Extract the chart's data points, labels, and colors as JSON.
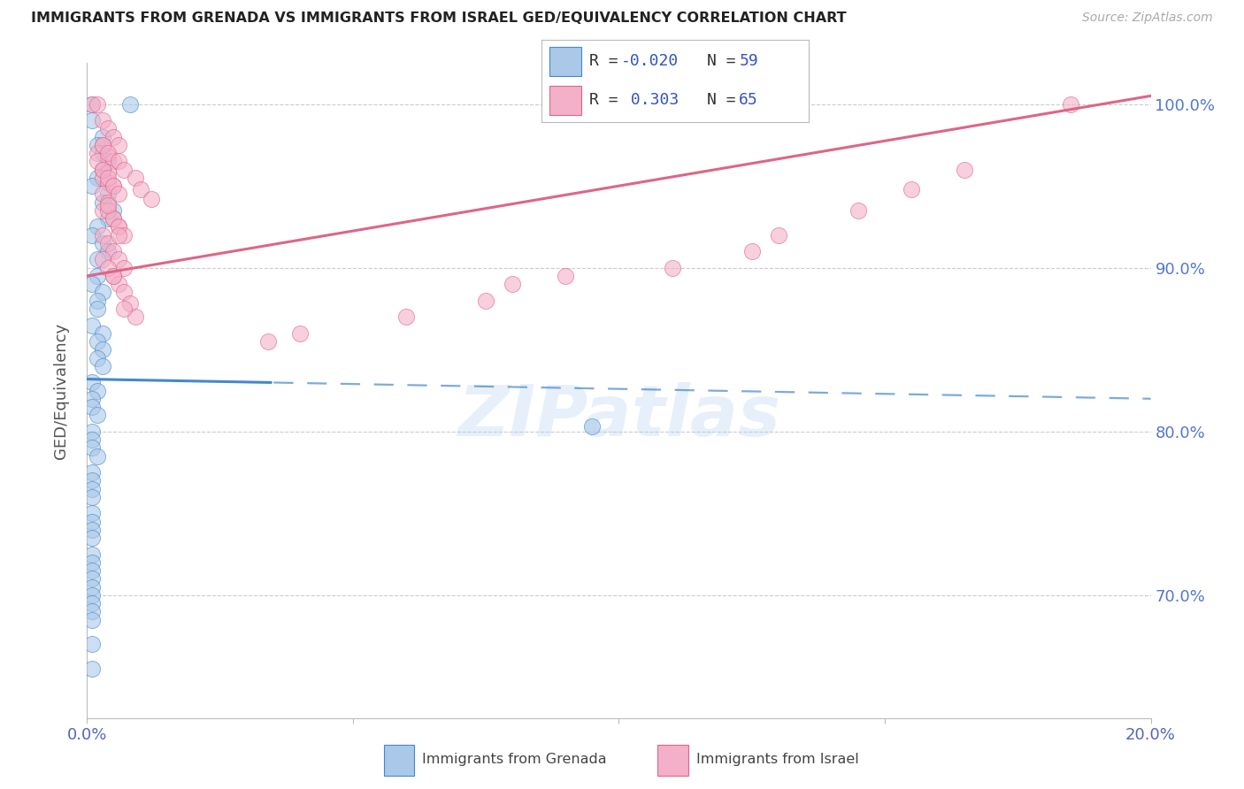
{
  "title": "IMMIGRANTS FROM GRENADA VS IMMIGRANTS FROM ISRAEL GED/EQUIVALENCY CORRELATION CHART",
  "source": "Source: ZipAtlas.com",
  "ylabel": "GED/Equivalency",
  "label1": "Immigrants from Grenada",
  "label2": "Immigrants from Israel",
  "color1": "#aac8e8",
  "color2": "#f4b0c8",
  "edge_color1": "#4488cc",
  "edge_color2": "#dd6688",
  "watermark": "ZIPatlas",
  "xmin": 0.0,
  "xmax": 0.2,
  "ymin": 0.625,
  "ymax": 1.025,
  "R1": -0.02,
  "N1": 59,
  "R2": 0.303,
  "N2": 65,
  "grenada_x": [
    0.001,
    0.008,
    0.001,
    0.003,
    0.002,
    0.003,
    0.004,
    0.003,
    0.002,
    0.001,
    0.004,
    0.003,
    0.005,
    0.004,
    0.002,
    0.001,
    0.003,
    0.004,
    0.002,
    0.002,
    0.001,
    0.003,
    0.002,
    0.002,
    0.001,
    0.003,
    0.002,
    0.003,
    0.002,
    0.003,
    0.001,
    0.002,
    0.001,
    0.001,
    0.002,
    0.001,
    0.001,
    0.001,
    0.002,
    0.001,
    0.001,
    0.001,
    0.001,
    0.001,
    0.001,
    0.001,
    0.001,
    0.001,
    0.001,
    0.001,
    0.001,
    0.001,
    0.001,
    0.001,
    0.001,
    0.001,
    0.001,
    0.001,
    0.095
  ],
  "grenada_y": [
    1.0,
    1.0,
    0.99,
    0.98,
    0.975,
    0.97,
    0.965,
    0.96,
    0.955,
    0.95,
    0.945,
    0.94,
    0.935,
    0.93,
    0.925,
    0.92,
    0.915,
    0.91,
    0.905,
    0.895,
    0.89,
    0.885,
    0.88,
    0.875,
    0.865,
    0.86,
    0.855,
    0.85,
    0.845,
    0.84,
    0.83,
    0.825,
    0.82,
    0.815,
    0.81,
    0.8,
    0.795,
    0.79,
    0.785,
    0.775,
    0.77,
    0.765,
    0.76,
    0.75,
    0.745,
    0.74,
    0.735,
    0.725,
    0.72,
    0.715,
    0.71,
    0.705,
    0.7,
    0.695,
    0.69,
    0.685,
    0.67,
    0.655,
    0.803
  ],
  "israel_x": [
    0.001,
    0.002,
    0.003,
    0.004,
    0.005,
    0.006,
    0.003,
    0.002,
    0.004,
    0.005,
    0.003,
    0.004,
    0.003,
    0.004,
    0.005,
    0.003,
    0.004,
    0.003,
    0.005,
    0.006,
    0.003,
    0.004,
    0.005,
    0.006,
    0.007,
    0.005,
    0.006,
    0.007,
    0.008,
    0.009,
    0.002,
    0.003,
    0.004,
    0.005,
    0.006,
    0.004,
    0.005,
    0.006,
    0.007,
    0.003,
    0.004,
    0.005,
    0.003,
    0.004,
    0.006,
    0.007,
    0.009,
    0.01,
    0.012,
    0.004,
    0.006,
    0.007,
    0.034,
    0.04,
    0.06,
    0.075,
    0.08,
    0.09,
    0.11,
    0.125,
    0.13,
    0.145,
    0.155,
    0.165,
    0.185
  ],
  "israel_y": [
    1.0,
    1.0,
    0.99,
    0.985,
    0.98,
    0.975,
    0.975,
    0.97,
    0.968,
    0.965,
    0.96,
    0.958,
    0.955,
    0.952,
    0.95,
    0.945,
    0.94,
    0.935,
    0.93,
    0.925,
    0.92,
    0.915,
    0.91,
    0.905,
    0.9,
    0.895,
    0.89,
    0.885,
    0.878,
    0.87,
    0.965,
    0.96,
    0.955,
    0.95,
    0.945,
    0.935,
    0.93,
    0.925,
    0.92,
    0.905,
    0.9,
    0.895,
    0.975,
    0.97,
    0.965,
    0.96,
    0.955,
    0.948,
    0.942,
    0.938,
    0.92,
    0.875,
    0.855,
    0.86,
    0.87,
    0.88,
    0.89,
    0.895,
    0.9,
    0.91,
    0.92,
    0.935,
    0.948,
    0.96,
    1.0
  ],
  "trend_grenada_x0": 0.0,
  "trend_grenada_x1": 0.2,
  "trend_grenada_y0": 0.832,
  "trend_grenada_y1": 0.82,
  "trend_israel_x0": 0.0,
  "trend_israel_x1": 0.2,
  "trend_israel_y0": 0.895,
  "trend_israel_y1": 1.005,
  "trend_split_x": 0.035
}
